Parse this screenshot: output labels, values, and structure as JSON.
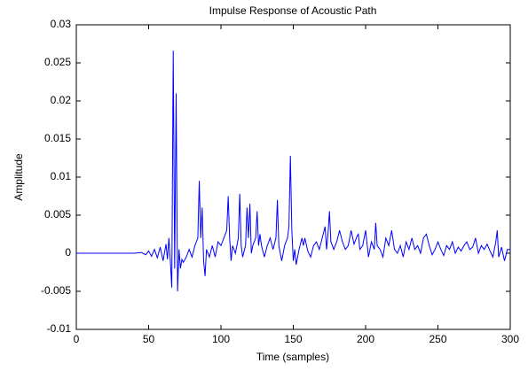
{
  "chart_data": {
    "type": "line",
    "title": "Impulse Response of Acoustic Path",
    "xlabel": "Time (samples)",
    "ylabel": "Amplitude",
    "color": "#0000ff",
    "x": [
      0,
      40,
      45,
      48,
      50,
      52,
      54,
      56,
      58,
      60,
      62,
      63,
      64,
      65,
      66,
      67,
      68,
      69,
      70,
      71,
      72,
      73,
      74,
      76,
      78,
      80,
      82,
      84,
      85,
      86,
      87,
      88,
      89,
      90,
      92,
      94,
      96,
      98,
      100,
      102,
      104,
      105,
      106,
      107,
      108,
      110,
      112,
      113,
      114,
      115,
      117,
      118,
      119,
      120,
      121,
      122,
      124,
      125,
      126,
      127,
      128,
      130,
      132,
      134,
      136,
      138,
      139,
      140,
      142,
      144,
      146,
      147,
      148,
      149,
      150,
      151,
      152,
      154,
      156,
      157,
      158,
      160,
      162,
      164,
      166,
      168,
      170,
      172,
      173,
      174,
      175,
      176,
      178,
      180,
      182,
      184,
      186,
      188,
      190,
      192,
      194,
      195,
      196,
      198,
      200,
      202,
      204,
      206,
      207,
      208,
      210,
      212,
      214,
      216,
      218,
      220,
      222,
      224,
      226,
      228,
      230,
      232,
      234,
      236,
      238,
      240,
      242,
      244,
      246,
      248,
      250,
      252,
      254,
      256,
      258,
      260,
      262,
      264,
      266,
      268,
      270,
      272,
      274,
      276,
      278,
      280,
      282,
      284,
      286,
      288,
      290,
      291,
      292,
      294,
      296,
      298,
      300
    ],
    "values": [
      0,
      0,
      0.0001,
      -0.0002,
      0.0003,
      -0.0004,
      0.0005,
      -0.0006,
      0.0008,
      -0.001,
      0.0012,
      -0.0008,
      0.002,
      -0.001,
      -0.0045,
      0.0266,
      -0.002,
      0.021,
      -0.005,
      0.0005,
      -0.002,
      -0.0008,
      -0.0012,
      -0.0005,
      0.0005,
      -0.0005,
      0.001,
      0.002,
      0.0095,
      0.002,
      0.006,
      -0.001,
      -0.003,
      0.0005,
      -0.0005,
      0.001,
      -0.0005,
      0.0015,
      0.001,
      0.002,
      0.003,
      0.0075,
      0.002,
      -0.001,
      0.001,
      0,
      0.002,
      0.0078,
      0.001,
      -0.0005,
      0.001,
      0.006,
      0.002,
      0.0065,
      0,
      0.001,
      0.002,
      0.0055,
      0.001,
      0.0025,
      0.001,
      -0.0005,
      0.001,
      0.002,
      0.0005,
      0.002,
      0.007,
      0.001,
      -0.001,
      0.001,
      0.002,
      0.0035,
      0.0128,
      0.003,
      -0.001,
      0.0005,
      -0.0015,
      0.0005,
      0.002,
      0.001,
      0.002,
      0.0003,
      -0.0005,
      0.001,
      0.0015,
      0.0005,
      0.002,
      0.0035,
      0.0005,
      0.0025,
      0.0055,
      0.0015,
      0.0005,
      0.0015,
      0.003,
      0.0015,
      0.0005,
      0.001,
      0.003,
      0.0012,
      0.0022,
      0.0025,
      0.0005,
      0.001,
      0.003,
      -0.0005,
      0.0015,
      0.0005,
      0.004,
      0.001,
      0.0005,
      -0.0005,
      0.002,
      0.001,
      0.003,
      0.0005,
      0,
      0.001,
      -0.0005,
      0.0015,
      0.0005,
      0.002,
      0.0005,
      0.001,
      0,
      0.002,
      0.0025,
      0.001,
      -0.0002,
      0.0005,
      0.0015,
      0.0005,
      -0.0003,
      0.001,
      0.0005,
      0.0015,
      0,
      0.0008,
      0.0003,
      0.001,
      0.0015,
      0.0005,
      0.0008,
      0.002,
      0,
      0.001,
      0.0005,
      0.0012,
      0.0003,
      -0.0005,
      0.0015,
      0.003,
      -0.0005,
      0.0008,
      -0.001,
      0.0005,
      0.0005
    ],
    "xlim": [
      0,
      300
    ],
    "xticks": [
      0,
      50,
      100,
      150,
      200,
      250,
      300
    ],
    "ylim": [
      -0.01,
      0.03
    ],
    "yticks": [
      -0.01,
      -0.005,
      0,
      0.005,
      0.01,
      0.015,
      0.02,
      0.025,
      0.03
    ]
  }
}
